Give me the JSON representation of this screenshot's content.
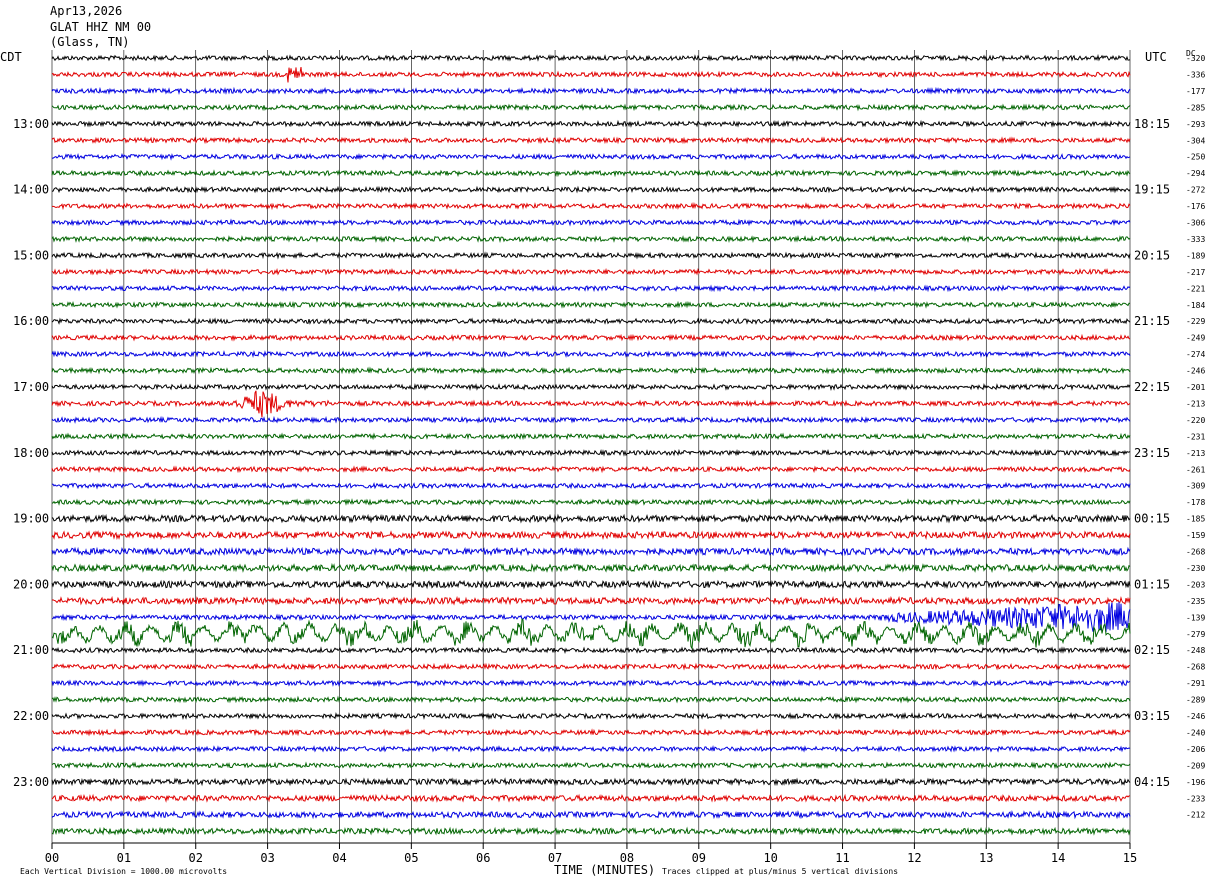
{
  "header": {
    "date": "Apr13,2026",
    "station": "GLAT HHZ NM 00",
    "location": "(Glass, TN)"
  },
  "left_tz": "CDT",
  "right_tz": "UTC",
  "dc_label": "DC",
  "footer": {
    "scale_note": "Each Vertical Division = 1000.00 microvolts",
    "xlabel": "TIME (MINUTES)",
    "clip_note": "Traces clipped at plus/minus 5 vertical divisions"
  },
  "colors": {
    "trace_cycle": [
      "#000000",
      "#e00000",
      "#0000e0",
      "#006400"
    ],
    "grid": "#000000"
  },
  "chart_data": {
    "type": "line",
    "title": "",
    "xlabel": "TIME (MINUTES)",
    "xlim": [
      0,
      15
    ],
    "x_ticks": [
      "00",
      "01",
      "02",
      "03",
      "04",
      "05",
      "06",
      "07",
      "08",
      "09",
      "10",
      "11",
      "12",
      "13",
      "14",
      "15"
    ],
    "left_hour_labels": [
      "13:00",
      "14:00",
      "15:00",
      "16:00",
      "17:00",
      "18:00",
      "19:00",
      "20:00",
      "21:00",
      "22:00",
      "23:00"
    ],
    "right_hour_labels": [
      "18:15",
      "19:15",
      "20:15",
      "21:15",
      "22:15",
      "23:15",
      "00:15",
      "01:15",
      "02:15",
      "03:15",
      "04:15"
    ],
    "dc_offsets": [
      "-320",
      "-336",
      "-177",
      "-285",
      "-293",
      "-304",
      "-250",
      "-294",
      "-272",
      "-176",
      "-306",
      "-333",
      "-189",
      "-217",
      "-221",
      "-184",
      "-229",
      "-249",
      "-274",
      "-246",
      "-201",
      "-213",
      "-220",
      "-231",
      "-213",
      "-261",
      "-309",
      "-178",
      "-185",
      "-159",
      "-268",
      "-230",
      "-203",
      "-235",
      "-139",
      "-279",
      "-248",
      "-268",
      "-291",
      "-289",
      "-246",
      "-240",
      "-206",
      "-209",
      "-196",
      "-233",
      "-212"
    ],
    "trace_count": 48
  }
}
